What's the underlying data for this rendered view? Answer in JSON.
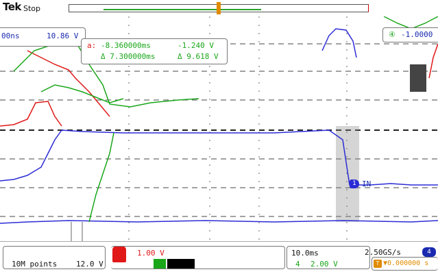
{
  "header": {
    "brand": "Tek",
    "acquisition_state": "Stop"
  },
  "readouts": {
    "time_left": "00ns",
    "voltage_left": "10.86 V",
    "cursor_a_marker": "a:",
    "cursor_a_time": "-8.360000ms",
    "cursor_a_value": "-1.240 V",
    "cursor_delta_time": "Δ 7.300000ms",
    "cursor_delta_value": "Δ 9.618 V",
    "right_channel_badge": "④",
    "right_value": "-1.0000"
  },
  "channel_marker": {
    "label": "1",
    "trace_label": "IN"
  },
  "status_bar": {
    "record_length": "10M points",
    "ch1_scale": "12.0 V",
    "ch2_scale": "1.00 V",
    "timebase": "10.0ms",
    "sample_rate": "2.50GS/s",
    "ch4_badge": "4",
    "ch4_circle": "4",
    "ch4_scale": "2.00 V",
    "trigger_badge": "T",
    "trigger_position": "▼0.000000 s"
  },
  "colors": {
    "ch1": "#2b2bd6",
    "ch2": "#e01818",
    "ch3": "#19a619",
    "ch4": "#1a2ab0",
    "trigger": "#e08b00",
    "grid": "#333333"
  },
  "icons": {
    "trigger_position": "trigger-position-icon",
    "channel_marker": "channel-1-marker-icon"
  }
}
